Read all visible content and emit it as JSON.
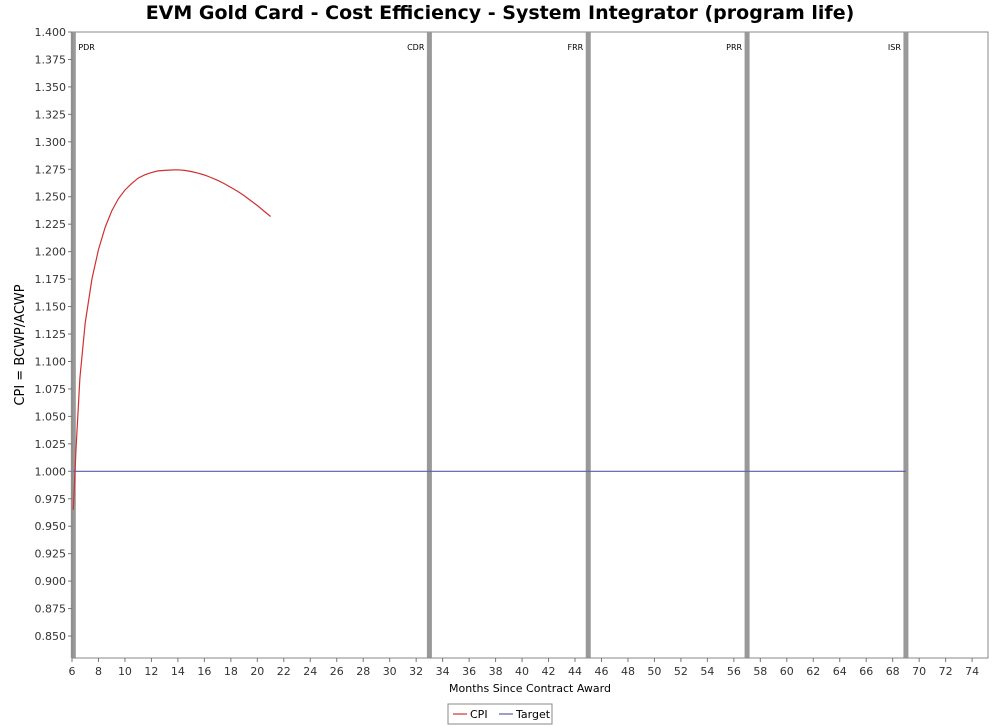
{
  "chart_data": {
    "type": "line",
    "title": "EVM Gold Card - Cost Efficiency - System Integrator (program life)",
    "xlabel": "Months Since Contract Award",
    "ylabel": "CPI = BCWP/ACWP",
    "xlim": [
      6,
      75.2
    ],
    "ylim": [
      0.83,
      1.4
    ],
    "xticks": [
      "6",
      "8",
      "10",
      "12",
      "14",
      "16",
      "18",
      "20",
      "22",
      "24",
      "26",
      "28",
      "30",
      "32",
      "34",
      "36",
      "38",
      "40",
      "42",
      "44",
      "46",
      "48",
      "50",
      "52",
      "54",
      "56",
      "58",
      "60",
      "62",
      "64",
      "66",
      "68",
      "70",
      "72",
      "74"
    ],
    "yticks": [
      "0.850",
      "0.875",
      "0.900",
      "0.925",
      "0.950",
      "0.975",
      "1.000",
      "1.025",
      "1.050",
      "1.075",
      "1.100",
      "1.125",
      "1.150",
      "1.175",
      "1.200",
      "1.225",
      "1.250",
      "1.275",
      "1.300",
      "1.325",
      "1.350",
      "1.375",
      "1.400"
    ],
    "grid": false,
    "legend": "bottom-center",
    "milestones": [
      {
        "label": "PDR",
        "x": 6.1
      },
      {
        "label": "CDR",
        "x": 33
      },
      {
        "label": "FRR",
        "x": 45
      },
      {
        "label": "PRR",
        "x": 57
      },
      {
        "label": "ISR",
        "x": 69
      }
    ],
    "series": [
      {
        "name": "CPI",
        "color": "#d03030",
        "x": [
          6.1,
          6.3,
          6.6,
          7.0,
          7.5,
          8.0,
          8.5,
          9.0,
          9.5,
          10.0,
          10.5,
          11.0,
          11.5,
          12.0,
          12.5,
          13.0,
          13.5,
          14.0,
          14.5,
          15.0,
          15.5,
          16.0,
          16.5,
          17.0,
          17.5,
          18.0,
          18.5,
          19.0,
          19.5,
          20.0,
          20.5,
          21.0
        ],
        "y": [
          0.965,
          1.02,
          1.085,
          1.135,
          1.175,
          1.202,
          1.222,
          1.237,
          1.248,
          1.256,
          1.262,
          1.267,
          1.27,
          1.272,
          1.2735,
          1.274,
          1.2743,
          1.2745,
          1.274,
          1.273,
          1.2715,
          1.2698,
          1.2675,
          1.265,
          1.262,
          1.2585,
          1.255,
          1.251,
          1.2465,
          1.242,
          1.237,
          1.232
        ]
      },
      {
        "name": "Target",
        "color": "#5a5ab0",
        "x": [
          6.1,
          69
        ],
        "y": [
          1.0,
          1.0
        ]
      }
    ]
  }
}
